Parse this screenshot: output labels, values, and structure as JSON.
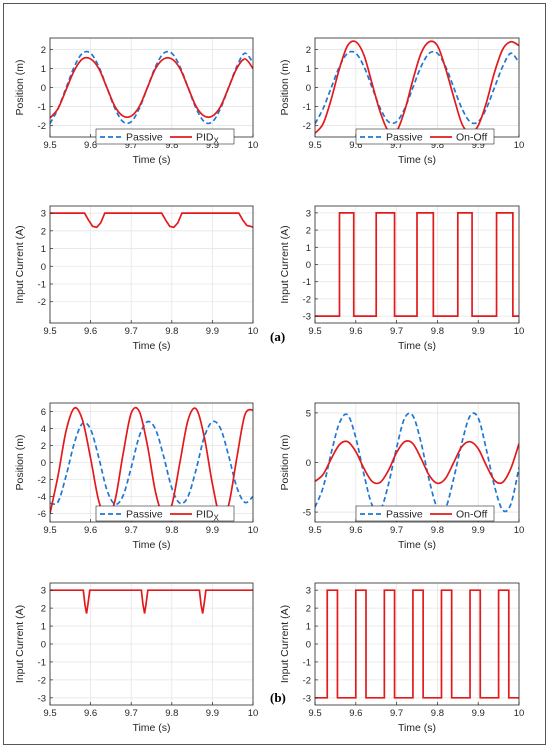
{
  "labels": {
    "a": "(a)",
    "b": "(b)"
  },
  "chart_data": [
    {
      "id": "a-pos-pid",
      "type": "line",
      "xlabel": "Time (s)",
      "ylabel": "Position (m)",
      "xlim": [
        9.5,
        10
      ],
      "ylim": [
        -2.6,
        2.6
      ],
      "xticks": [
        "9.5",
        "9.6",
        "9.7",
        "9.8",
        "9.9",
        "10"
      ],
      "yticks": [
        "-2",
        "-1",
        "0",
        "1",
        "2"
      ],
      "ytick_values": [
        -2,
        -1,
        0,
        1,
        2
      ],
      "grid": true,
      "legend": "bottom-center",
      "series": [
        {
          "name": "Passive",
          "color": "#1f77d4",
          "dash": true,
          "x": [
            9.5,
            9.52,
            9.54,
            9.56,
            9.58,
            9.6,
            9.62,
            9.64,
            9.66,
            9.68,
            9.7,
            9.72,
            9.74,
            9.76,
            9.78,
            9.8,
            9.82,
            9.84,
            9.86,
            9.88,
            9.9,
            9.92,
            9.94,
            9.96,
            9.98,
            10
          ],
          "y": [
            -1.9,
            -1.1,
            0.0,
            1.1,
            1.8,
            1.8,
            1.1,
            0.0,
            -1.1,
            -1.8,
            -1.8,
            -1.1,
            0.0,
            1.1,
            1.8,
            1.8,
            1.1,
            0.0,
            -1.1,
            -1.8,
            -1.8,
            -1.1,
            0.0,
            1.1,
            1.8,
            1.3
          ]
        },
        {
          "name": "PID",
          "subscript": "X",
          "color": "#e31a1c",
          "dash": false,
          "x": [
            9.5,
            9.52,
            9.54,
            9.56,
            9.58,
            9.6,
            9.62,
            9.64,
            9.66,
            9.68,
            9.7,
            9.72,
            9.74,
            9.76,
            9.78,
            9.8,
            9.82,
            9.84,
            9.86,
            9.88,
            9.9,
            9.92,
            9.94,
            9.96,
            9.98,
            10
          ],
          "y": [
            -1.6,
            -1.1,
            -0.1,
            0.9,
            1.5,
            1.5,
            1.0,
            0.0,
            -1.0,
            -1.5,
            -1.5,
            -1.0,
            0.0,
            1.0,
            1.5,
            1.5,
            1.0,
            0.0,
            -1.0,
            -1.5,
            -1.5,
            -1.0,
            0.0,
            1.0,
            1.5,
            1.0
          ]
        }
      ]
    },
    {
      "id": "a-pos-onoff",
      "type": "line",
      "xlabel": "Time (s)",
      "ylabel": "Position (m)",
      "xlim": [
        9.5,
        10
      ],
      "ylim": [
        -2.6,
        2.6
      ],
      "xticks": [
        "9.5",
        "9.6",
        "9.7",
        "9.8",
        "9.9",
        "10"
      ],
      "yticks": [
        "-2",
        "-1",
        "0",
        "1",
        "2"
      ],
      "ytick_values": [
        -2,
        -1,
        0,
        1,
        2
      ],
      "grid": true,
      "legend": "bottom-center",
      "series": [
        {
          "name": "Passive",
          "color": "#1f77d4",
          "dash": true,
          "x": [
            9.5,
            9.52,
            9.54,
            9.56,
            9.58,
            9.6,
            9.62,
            9.64,
            9.66,
            9.68,
            9.7,
            9.72,
            9.74,
            9.76,
            9.78,
            9.8,
            9.82,
            9.84,
            9.86,
            9.88,
            9.9,
            9.92,
            9.94,
            9.96,
            9.98,
            10
          ],
          "y": [
            -1.9,
            -1.1,
            0.0,
            1.1,
            1.8,
            1.8,
            1.1,
            0.0,
            -1.1,
            -1.8,
            -1.8,
            -1.1,
            0.0,
            1.1,
            1.8,
            1.8,
            1.1,
            0.0,
            -1.1,
            -1.8,
            -1.8,
            -1.1,
            0.0,
            1.1,
            1.8,
            1.3
          ]
        },
        {
          "name": "On-Off",
          "color": "#e31a1c",
          "dash": false,
          "x": [
            9.5,
            9.52,
            9.54,
            9.56,
            9.58,
            9.6,
            9.62,
            9.64,
            9.66,
            9.68,
            9.7,
            9.72,
            9.74,
            9.76,
            9.78,
            9.8,
            9.82,
            9.84,
            9.86,
            9.88,
            9.9,
            9.92,
            9.94,
            9.96,
            9.98,
            10
          ],
          "y": [
            -2.4,
            -1.9,
            -0.6,
            1.0,
            2.2,
            2.4,
            1.7,
            0.2,
            -1.3,
            -2.3,
            -2.3,
            -1.2,
            0.4,
            1.8,
            2.4,
            2.2,
            1.0,
            -0.5,
            -1.9,
            -2.4,
            -2.0,
            -0.8,
            0.8,
            2.0,
            2.4,
            2.2
          ]
        }
      ]
    },
    {
      "id": "a-cur-pid",
      "type": "line",
      "xlabel": "Time (s)",
      "ylabel": "Input Current (A)",
      "xlim": [
        9.5,
        10
      ],
      "ylim": [
        -3.2,
        3.4
      ],
      "xticks": [
        "9.5",
        "9.6",
        "9.7",
        "9.8",
        "9.9",
        "10"
      ],
      "yticks": [
        "3",
        "2",
        "1",
        "0",
        "-1",
        "-2"
      ],
      "ytick_values": [
        3,
        2,
        1,
        0,
        -1,
        -2
      ],
      "grid": true,
      "series": [
        {
          "name": "",
          "color": "#e31a1c",
          "dash": false,
          "x": [
            9.5,
            9.585,
            9.595,
            9.605,
            9.615,
            9.625,
            9.635,
            9.775,
            9.785,
            9.795,
            9.805,
            9.815,
            9.825,
            9.965,
            9.975,
            9.985,
            9.995,
            10
          ],
          "y": [
            3,
            3,
            2.6,
            2.25,
            2.2,
            2.45,
            3,
            3,
            2.6,
            2.25,
            2.2,
            2.45,
            3,
            3,
            2.6,
            2.3,
            2.25,
            2.2
          ]
        }
      ]
    },
    {
      "id": "a-cur-onoff",
      "type": "line",
      "xlabel": "Time (s)",
      "ylabel": "Input Current (A)",
      "xlim": [
        9.5,
        10
      ],
      "ylim": [
        -3.4,
        3.4
      ],
      "xticks": [
        "9.5",
        "9.6",
        "9.7",
        "9.8",
        "9.9",
        "10"
      ],
      "yticks": [
        "3",
        "2",
        "1",
        "0",
        "-1",
        "-2",
        "-3"
      ],
      "ytick_values": [
        3,
        2,
        1,
        0,
        -1,
        -2,
        -3
      ],
      "grid": true,
      "series": [
        {
          "name": "",
          "color": "#e31a1c",
          "dash": false,
          "step": true,
          "x": [
            9.5,
            9.56,
            9.56,
            9.595,
            9.595,
            9.65,
            9.65,
            9.695,
            9.695,
            9.75,
            9.75,
            9.79,
            9.79,
            9.85,
            9.85,
            9.885,
            9.885,
            9.945,
            9.945,
            9.985,
            9.985,
            10
          ],
          "y": [
            -3,
            -3,
            3,
            3,
            -3,
            -3,
            3,
            3,
            -3,
            -3,
            3,
            3,
            -3,
            -3,
            3,
            3,
            -3,
            -3,
            3,
            3,
            -3,
            -3
          ]
        }
      ]
    },
    {
      "id": "b-pos-pid",
      "type": "line",
      "xlabel": "Time (s)",
      "ylabel": "Position (m)",
      "xlim": [
        9.5,
        10
      ],
      "ylim": [
        -7,
        7
      ],
      "xticks": [
        "9.5",
        "9.6",
        "9.7",
        "9.8",
        "9.9",
        "10"
      ],
      "yticks": [
        "6",
        "4",
        "2",
        "0",
        "-2",
        "-4",
        "-6"
      ],
      "ytick_values": [
        6,
        4,
        2,
        0,
        -2,
        -4,
        -6
      ],
      "grid": true,
      "legend": "bottom-center",
      "series": [
        {
          "name": "Passive",
          "color": "#1f77d4",
          "dash": true,
          "x": [
            9.5,
            9.52,
            9.54,
            9.56,
            9.58,
            9.6,
            9.62,
            9.64,
            9.66,
            9.68,
            9.7,
            9.72,
            9.74,
            9.76,
            9.78,
            9.8,
            9.82,
            9.84,
            9.86,
            9.88,
            9.9,
            9.92,
            9.94,
            9.96,
            9.98,
            10
          ],
          "y": [
            -4.8,
            -4.6,
            -1.5,
            2.3,
            4.6,
            3.9,
            0.6,
            -3.2,
            -4.9,
            -3.9,
            -0.6,
            3.1,
            4.8,
            3.9,
            0.7,
            -3.0,
            -4.8,
            -4.0,
            -0.8,
            3.0,
            4.8,
            4.0,
            0.8,
            -2.9,
            -4.7,
            -4.0
          ]
        },
        {
          "name": "PID",
          "subscript": "X",
          "color": "#e31a1c",
          "dash": false,
          "x": [
            9.5,
            9.52,
            9.54,
            9.56,
            9.58,
            9.6,
            9.62,
            9.64,
            9.66,
            9.68,
            9.7,
            9.72,
            9.74,
            9.76,
            9.78,
            9.8,
            9.82,
            9.84,
            9.86,
            9.88,
            9.9,
            9.92,
            9.94,
            9.96,
            9.98,
            10
          ],
          "y": [
            -6.0,
            -1.5,
            3.8,
            6.4,
            5.0,
            0.5,
            -4.5,
            -6.5,
            -4.5,
            1.0,
            5.8,
            6.0,
            2.0,
            -3.5,
            -6.3,
            -5.0,
            0.0,
            5.0,
            6.3,
            3.0,
            -2.5,
            -6.5,
            -5.0,
            0.5,
            5.6,
            6.2
          ]
        }
      ]
    },
    {
      "id": "b-pos-onoff",
      "type": "line",
      "xlabel": "Time (s)",
      "ylabel": "Position (m)",
      "xlim": [
        9.5,
        10
      ],
      "ylim": [
        -6,
        6
      ],
      "xticks": [
        "9.5",
        "9.6",
        "9.7",
        "9.8",
        "9.9",
        "10"
      ],
      "yticks": [
        "5",
        "0",
        "-5"
      ],
      "ytick_values": [
        5,
        0,
        -5
      ],
      "grid": true,
      "legend": "bottom-center",
      "series": [
        {
          "name": "Passive",
          "color": "#1f77d4",
          "dash": true,
          "x": [
            9.5,
            9.52,
            9.54,
            9.56,
            9.58,
            9.6,
            9.62,
            9.64,
            9.66,
            9.68,
            9.7,
            9.72,
            9.74,
            9.76,
            9.78,
            9.8,
            9.82,
            9.84,
            9.86,
            9.88,
            9.9,
            9.92,
            9.94,
            9.96,
            9.98,
            10
          ],
          "y": [
            -4.5,
            -2.5,
            1.0,
            4.0,
            4.8,
            2.5,
            -1.2,
            -4.3,
            -4.8,
            -2.2,
            1.5,
            4.5,
            4.7,
            2.0,
            -1.8,
            -4.6,
            -4.6,
            -1.6,
            2.0,
            4.7,
            4.5,
            1.3,
            -2.4,
            -4.8,
            -4.2,
            -0.5
          ]
        },
        {
          "name": "On-Off",
          "color": "#e31a1c",
          "dash": false,
          "x": [
            9.5,
            9.52,
            9.54,
            9.56,
            9.58,
            9.6,
            9.62,
            9.64,
            9.66,
            9.68,
            9.7,
            9.72,
            9.74,
            9.76,
            9.78,
            9.8,
            9.82,
            9.84,
            9.86,
            9.88,
            9.9,
            9.92,
            9.94,
            9.96,
            9.98,
            10
          ],
          "y": [
            -1.9,
            -1.2,
            0.4,
            1.8,
            2.1,
            1.1,
            -0.6,
            -1.9,
            -2.0,
            -0.8,
            1.0,
            2.1,
            1.9,
            0.4,
            -1.3,
            -2.1,
            -1.6,
            0.0,
            1.6,
            2.1,
            1.4,
            -0.3,
            -1.8,
            -2.0,
            -0.6,
            1.9
          ]
        }
      ]
    },
    {
      "id": "b-cur-pid",
      "type": "line",
      "xlabel": "Time (s)",
      "ylabel": "Input Current (A)",
      "xlim": [
        9.5,
        10
      ],
      "ylim": [
        -3.4,
        3.4
      ],
      "xticks": [
        "9.5",
        "9.6",
        "9.7",
        "9.8",
        "9.9",
        "10"
      ],
      "yticks": [
        "3",
        "2",
        "1",
        "0",
        "-1",
        "-2",
        "-3"
      ],
      "ytick_values": [
        3,
        2,
        1,
        0,
        -1,
        -2,
        -3
      ],
      "grid": true,
      "series": [
        {
          "name": "",
          "color": "#e31a1c",
          "dash": false,
          "x": [
            9.5,
            9.582,
            9.586,
            9.59,
            9.594,
            9.598,
            9.725,
            9.729,
            9.733,
            9.737,
            9.741,
            9.868,
            9.872,
            9.876,
            9.88,
            9.884,
            10
          ],
          "y": [
            3,
            3,
            2.2,
            1.7,
            2.3,
            3,
            3,
            2.2,
            1.7,
            2.3,
            3,
            3,
            2.2,
            1.7,
            2.3,
            3,
            3
          ]
        }
      ]
    },
    {
      "id": "b-cur-onoff",
      "type": "line",
      "xlabel": "Time (s)",
      "ylabel": "Input Current (A)",
      "xlim": [
        9.5,
        10
      ],
      "ylim": [
        -3.4,
        3.4
      ],
      "xticks": [
        "9.5",
        "9.6",
        "9.7",
        "9.8",
        "9.9",
        "10"
      ],
      "yticks": [
        "3",
        "2",
        "1",
        "0",
        "-1",
        "-2",
        "-3"
      ],
      "ytick_values": [
        3,
        2,
        1,
        0,
        -1,
        -2,
        -3
      ],
      "grid": true,
      "series": [
        {
          "name": "",
          "color": "#e31a1c",
          "dash": false,
          "step": true,
          "x": [
            9.5,
            9.53,
            9.53,
            9.555,
            9.555,
            9.6,
            9.6,
            9.625,
            9.625,
            9.67,
            9.67,
            9.695,
            9.695,
            9.74,
            9.74,
            9.765,
            9.765,
            9.81,
            9.81,
            9.835,
            9.835,
            9.88,
            9.88,
            9.905,
            9.905,
            9.95,
            9.95,
            9.975,
            9.975,
            10
          ],
          "y": [
            -3,
            -3,
            3,
            3,
            -3,
            -3,
            3,
            3,
            -3,
            -3,
            3,
            3,
            -3,
            -3,
            3,
            3,
            -3,
            -3,
            3,
            3,
            -3,
            -3,
            3,
            3,
            -3,
            -3,
            3,
            3,
            -3,
            -3
          ]
        }
      ]
    }
  ]
}
